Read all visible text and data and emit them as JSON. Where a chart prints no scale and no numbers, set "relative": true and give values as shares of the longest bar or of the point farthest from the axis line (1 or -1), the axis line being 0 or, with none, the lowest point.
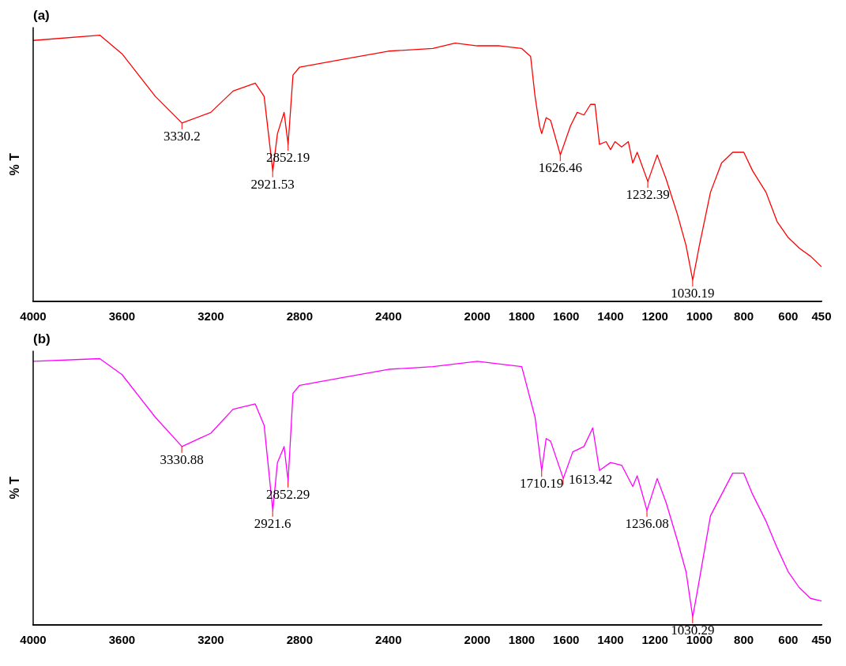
{
  "chart_data": [
    {
      "type": "line",
      "title": "(a)",
      "ylabel": "% T",
      "relative": true,
      "xlim": [
        4000,
        450
      ],
      "xticks": [
        4000,
        3600,
        3200,
        2800,
        2400,
        2000,
        1800,
        1600,
        1400,
        1200,
        1000,
        800,
        600,
        450
      ],
      "grid": false,
      "legend": false,
      "marker": "none",
      "x": [
        4000,
        3700,
        3600,
        3450,
        3330,
        3200,
        3100,
        3000,
        2960,
        2921,
        2900,
        2870,
        2852,
        2830,
        2800,
        2600,
        2400,
        2200,
        2100,
        2000,
        1900,
        1800,
        1760,
        1740,
        1720,
        1710,
        1690,
        1670,
        1626,
        1580,
        1550,
        1520,
        1490,
        1470,
        1450,
        1420,
        1400,
        1380,
        1350,
        1320,
        1300,
        1280,
        1232,
        1190,
        1150,
        1100,
        1060,
        1030,
        1000,
        950,
        900,
        850,
        800,
        760,
        700,
        650,
        600,
        550,
        500,
        450
      ],
      "series": [
        {
          "color": "#ff0000",
          "values": [
            0.98,
            1,
            0.93,
            0.77,
            0.67,
            0.71,
            0.79,
            0.82,
            0.77,
            0.49,
            0.63,
            0.71,
            0.59,
            0.85,
            0.88,
            0.91,
            0.94,
            0.95,
            0.97,
            0.96,
            0.96,
            0.95,
            0.92,
            0.77,
            0.66,
            0.63,
            0.69,
            0.68,
            0.55,
            0.66,
            0.71,
            0.7,
            0.74,
            0.74,
            0.59,
            0.6,
            0.57,
            0.6,
            0.58,
            0.6,
            0.52,
            0.56,
            0.45,
            0.55,
            0.46,
            0.33,
            0.21,
            0.08,
            0.21,
            0.41,
            0.52,
            0.56,
            0.56,
            0.49,
            0.41,
            0.3,
            0.24,
            0.2,
            0.17,
            0.13
          ]
        }
      ],
      "annotations": [
        {
          "text": "3330.2",
          "x": 3330.2,
          "y": 0.67
        },
        {
          "text": "2921.53",
          "x": 2921.53,
          "y": 0.49
        },
        {
          "text": "2852.19",
          "x": 2852.19,
          "y": 0.59
        },
        {
          "text": "1626.46",
          "x": 1626.46,
          "y": 0.55
        },
        {
          "text": "1232.39",
          "x": 1232.39,
          "y": 0.45
        },
        {
          "text": "1030.19",
          "x": 1030.19,
          "y": 0.08
        }
      ]
    },
    {
      "type": "line",
      "title": "(b)",
      "ylabel": "% T",
      "relative": true,
      "xlim": [
        4000,
        450
      ],
      "xticks": [
        4000,
        3600,
        3200,
        2800,
        2400,
        2000,
        1800,
        1600,
        1400,
        1200,
        1000,
        800,
        600,
        450
      ],
      "grid": false,
      "legend": false,
      "marker": "none",
      "x": [
        4000,
        3700,
        3600,
        3450,
        3330,
        3200,
        3100,
        3000,
        2960,
        2921,
        2900,
        2870,
        2852,
        2830,
        2800,
        2600,
        2400,
        2200,
        2000,
        1800,
        1740,
        1710,
        1690,
        1670,
        1613,
        1570,
        1520,
        1480,
        1450,
        1400,
        1350,
        1300,
        1280,
        1236,
        1190,
        1150,
        1100,
        1060,
        1030,
        1000,
        950,
        900,
        850,
        800,
        760,
        700,
        650,
        600,
        550,
        500,
        450
      ],
      "series": [
        {
          "color": "#ff00ff",
          "values": [
            0.99,
            1,
            0.94,
            0.78,
            0.67,
            0.72,
            0.81,
            0.83,
            0.75,
            0.43,
            0.61,
            0.67,
            0.54,
            0.87,
            0.9,
            0.93,
            0.96,
            0.97,
            0.99,
            0.97,
            0.78,
            0.58,
            0.7,
            0.69,
            0.55,
            0.65,
            0.67,
            0.74,
            0.58,
            0.61,
            0.6,
            0.52,
            0.56,
            0.43,
            0.55,
            0.46,
            0.32,
            0.2,
            0.03,
            0.17,
            0.41,
            0.49,
            0.57,
            0.57,
            0.49,
            0.39,
            0.29,
            0.2,
            0.14,
            0.1,
            0.09
          ]
        }
      ],
      "annotations": [
        {
          "text": "3330.88",
          "x": 3330.88,
          "y": 0.67
        },
        {
          "text": "2921.6",
          "x": 2921.6,
          "y": 0.43
        },
        {
          "text": "2852.29",
          "x": 2852.29,
          "y": 0.54
        },
        {
          "text": "1710.19",
          "x": 1710.19,
          "y": 0.58
        },
        {
          "text": "1613.42",
          "x": 1613.42,
          "y": 0.55
        },
        {
          "text": "1236.08",
          "x": 1236.08,
          "y": 0.43
        },
        {
          "text": "1030.29",
          "x": 1030.29,
          "y": 0.03
        }
      ]
    }
  ]
}
